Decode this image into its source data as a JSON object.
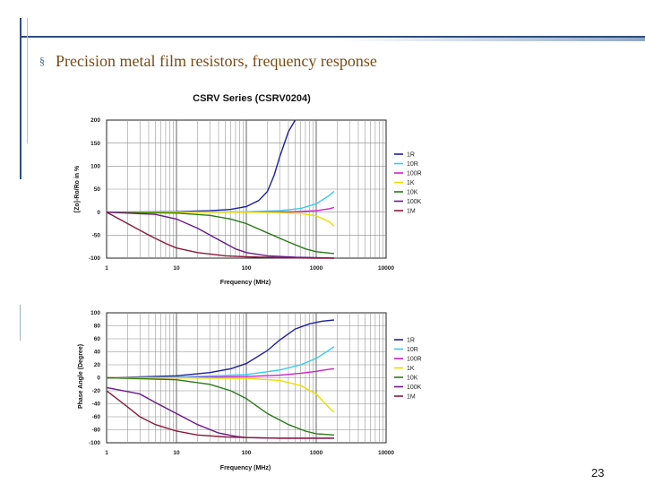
{
  "slide": {
    "bullet": "§",
    "heading": "Precision metal film resistors, frequency response",
    "page_number": "23"
  },
  "chart_data": [
    {
      "type": "line",
      "title": "CSRV Series (CSRV0204)",
      "xlabel": "Frequency (MHz)",
      "ylabel": "[Zo]-Ro/Ro in %",
      "x_scale": "log",
      "xlim": [
        1,
        10000
      ],
      "ylim": [
        -100,
        200
      ],
      "x_ticks": [
        1,
        10,
        100,
        1000,
        10000
      ],
      "x_tick_labels": [
        "1",
        "10",
        "100",
        "1000",
        "10000"
      ],
      "y_ticks": [
        200,
        150,
        100,
        50,
        0,
        -50,
        -100
      ],
      "grid": true,
      "legend": "right",
      "series": [
        {
          "name": "1R",
          "color": "#1f1fa0",
          "x": [
            1,
            10,
            30,
            60,
            100,
            150,
            200,
            250,
            300,
            400,
            500
          ],
          "values": [
            0,
            1,
            3,
            6,
            12,
            25,
            45,
            80,
            120,
            175,
            200
          ]
        },
        {
          "name": "10R",
          "color": "#33ccee",
          "x": [
            1,
            10,
            100,
            300,
            600,
            1000,
            1500,
            1800
          ],
          "values": [
            0,
            0,
            1,
            3,
            8,
            18,
            35,
            45
          ]
        },
        {
          "name": "100R",
          "color": "#cc22cc",
          "x": [
            1,
            10,
            100,
            500,
            1000,
            1500,
            1800
          ],
          "values": [
            0,
            0,
            0,
            1,
            3,
            7,
            10
          ]
        },
        {
          "name": "1K",
          "color": "#e8e000",
          "x": [
            1,
            10,
            100,
            300,
            600,
            1000,
            1500,
            1800
          ],
          "values": [
            0,
            0,
            0,
            -1,
            -3,
            -8,
            -20,
            -30
          ]
        },
        {
          "name": "10K",
          "color": "#2a7a1a",
          "x": [
            1,
            10,
            30,
            60,
            100,
            200,
            400,
            700,
            1000,
            1800
          ],
          "values": [
            0,
            -2,
            -7,
            -15,
            -25,
            -45,
            -65,
            -80,
            -86,
            -90
          ]
        },
        {
          "name": "100K",
          "color": "#6a1a8a",
          "x": [
            1,
            5,
            10,
            20,
            40,
            70,
            100,
            200,
            500,
            1000,
            1800
          ],
          "values": [
            0,
            -5,
            -15,
            -35,
            -60,
            -80,
            -88,
            -95,
            -98,
            -99,
            -100
          ]
        },
        {
          "name": "1M",
          "color": "#8a1a3a",
          "x": [
            1,
            2,
            4,
            7,
            10,
            20,
            50,
            100,
            300,
            1000,
            1800
          ],
          "values": [
            0,
            -25,
            -50,
            -68,
            -78,
            -88,
            -95,
            -97,
            -99,
            -100,
            -100
          ]
        }
      ]
    },
    {
      "type": "line",
      "xlabel": "Frequency (MHz)",
      "ylabel": "Phase Angle (Degree)",
      "x_scale": "log",
      "xlim": [
        1,
        10000
      ],
      "ylim": [
        -100,
        100
      ],
      "x_ticks": [
        1,
        10,
        100,
        1000,
        10000
      ],
      "x_tick_labels": [
        "1",
        "10",
        "100",
        "1000",
        "10000"
      ],
      "y_ticks": [
        100,
        80,
        60,
        40,
        20,
        0,
        -20,
        -40,
        -60,
        -80,
        -100
      ],
      "grid": true,
      "legend": "right",
      "series": [
        {
          "name": "1R",
          "color": "#1f1fa0",
          "x": [
            1,
            10,
            30,
            60,
            100,
            200,
            300,
            500,
            800,
            1200,
            1800
          ],
          "values": [
            0,
            3,
            8,
            14,
            22,
            42,
            58,
            75,
            83,
            87,
            89
          ]
        },
        {
          "name": "10R",
          "color": "#33ccee",
          "x": [
            1,
            10,
            100,
            300,
            600,
            1000,
            1500,
            1800
          ],
          "values": [
            0,
            1,
            5,
            12,
            20,
            30,
            42,
            48
          ]
        },
        {
          "name": "100R",
          "color": "#cc22cc",
          "x": [
            1,
            10,
            100,
            300,
            600,
            1000,
            1500,
            1800
          ],
          "values": [
            0,
            0,
            2,
            4,
            7,
            10,
            13,
            14
          ]
        },
        {
          "name": "1K",
          "color": "#e8e000",
          "x": [
            1,
            10,
            100,
            300,
            600,
            1000,
            1500,
            1800
          ],
          "values": [
            0,
            0,
            -1,
            -4,
            -12,
            -25,
            -45,
            -53
          ]
        },
        {
          "name": "10K",
          "color": "#2a7a1a",
          "x": [
            1,
            10,
            30,
            60,
            100,
            200,
            400,
            700,
            1000,
            1800
          ],
          "values": [
            0,
            -3,
            -10,
            -20,
            -32,
            -55,
            -72,
            -82,
            -86,
            -88
          ]
        },
        {
          "name": "100K",
          "color": "#6a1a8a",
          "x": [
            1,
            3,
            5,
            10,
            20,
            40,
            70,
            100,
            300,
            1000,
            1800
          ],
          "values": [
            -15,
            -25,
            -38,
            -55,
            -72,
            -85,
            -90,
            -92,
            -93,
            -93,
            -93
          ]
        },
        {
          "name": "1M",
          "color": "#8a1a3a",
          "x": [
            1,
            2,
            3,
            5,
            10,
            20,
            50,
            100,
            300,
            1000,
            1800
          ],
          "values": [
            -20,
            -45,
            -60,
            -72,
            -82,
            -88,
            -91,
            -92,
            -93,
            -93,
            -93
          ]
        }
      ]
    }
  ]
}
